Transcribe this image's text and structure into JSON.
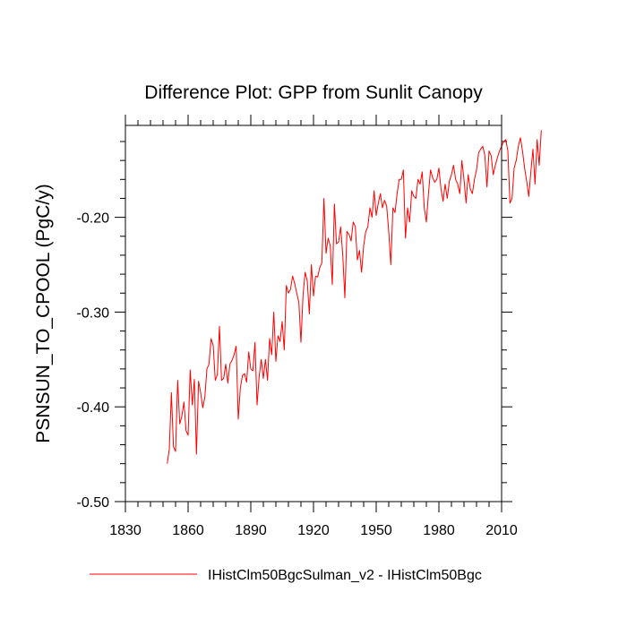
{
  "chart_data": {
    "type": "line",
    "title": "Difference Plot: GPP from Sunlit Canopy",
    "xlabel": "",
    "ylabel": "PSNSUN_TO_CPOOL  (PgC/y)",
    "xlim": [
      1830,
      2010
    ],
    "ylim": [
      -0.5,
      -0.103
    ],
    "x_ticks": [
      1830,
      1860,
      1890,
      1920,
      1950,
      1980,
      2010
    ],
    "x_tick_labels": [
      "1830",
      "1860",
      "1890",
      "1920",
      "1950",
      "1980",
      "2010"
    ],
    "y_ticks": [
      -0.5,
      -0.4,
      -0.3,
      -0.2
    ],
    "y_tick_labels": [
      "-0.50",
      "-0.40",
      "-0.30",
      "-0.20"
    ],
    "grid": false,
    "legend_position": "bottom",
    "colors": {
      "series": "#ff0000"
    },
    "series": [
      {
        "name": "IHistClm50BgcSulman_v2 - IHistClm50Bgc",
        "x_start": 1850,
        "x_step": 1,
        "values": [
          -0.46,
          -0.445,
          -0.385,
          -0.442,
          -0.447,
          -0.372,
          -0.418,
          -0.41,
          -0.395,
          -0.425,
          -0.43,
          -0.361,
          -0.398,
          -0.371,
          -0.45,
          -0.373,
          -0.385,
          -0.401,
          -0.39,
          -0.36,
          -0.355,
          -0.328,
          -0.335,
          -0.372,
          -0.366,
          -0.315,
          -0.372,
          -0.37,
          -0.355,
          -0.375,
          -0.355,
          -0.351,
          -0.345,
          -0.336,
          -0.413,
          -0.38,
          -0.367,
          -0.365,
          -0.374,
          -0.342,
          -0.36,
          -0.362,
          -0.332,
          -0.398,
          -0.368,
          -0.35,
          -0.37,
          -0.35,
          -0.372,
          -0.328,
          -0.345,
          -0.3,
          -0.352,
          -0.325,
          -0.331,
          -0.31,
          -0.34,
          -0.272,
          -0.28,
          -0.276,
          -0.262,
          -0.27,
          -0.28,
          -0.29,
          -0.332,
          -0.282,
          -0.258,
          -0.267,
          -0.302,
          -0.25,
          -0.283,
          -0.262,
          -0.263,
          -0.253,
          -0.248,
          -0.18,
          -0.238,
          -0.222,
          -0.23,
          -0.271,
          -0.186,
          -0.228,
          -0.226,
          -0.21,
          -0.24,
          -0.285,
          -0.215,
          -0.218,
          -0.225,
          -0.205,
          -0.21,
          -0.245,
          -0.235,
          -0.258,
          -0.23,
          -0.215,
          -0.21,
          -0.19,
          -0.2,
          -0.172,
          -0.198,
          -0.185,
          -0.175,
          -0.19,
          -0.182,
          -0.188,
          -0.215,
          -0.25,
          -0.19,
          -0.195,
          -0.175,
          -0.16,
          -0.16,
          -0.15,
          -0.222,
          -0.19,
          -0.205,
          -0.172,
          -0.178,
          -0.18,
          -0.16,
          -0.165,
          -0.152,
          -0.19,
          -0.205,
          -0.175,
          -0.15,
          -0.158,
          -0.163,
          -0.16,
          -0.148,
          -0.17,
          -0.183,
          -0.165,
          -0.18,
          -0.162,
          -0.155,
          -0.145,
          -0.16,
          -0.165,
          -0.175,
          -0.14,
          -0.16,
          -0.185,
          -0.155,
          -0.17,
          -0.175,
          -0.16,
          -0.15,
          -0.132,
          -0.128,
          -0.125,
          -0.135,
          -0.168,
          -0.13,
          -0.135,
          -0.155,
          -0.145,
          -0.137,
          -0.13,
          -0.125,
          -0.12,
          -0.118,
          -0.13,
          -0.185,
          -0.18,
          -0.148,
          -0.14,
          -0.125,
          -0.116,
          -0.13,
          -0.148,
          -0.162,
          -0.178,
          -0.152,
          -0.128,
          -0.165,
          -0.118,
          -0.145,
          -0.108
        ]
      }
    ]
  }
}
